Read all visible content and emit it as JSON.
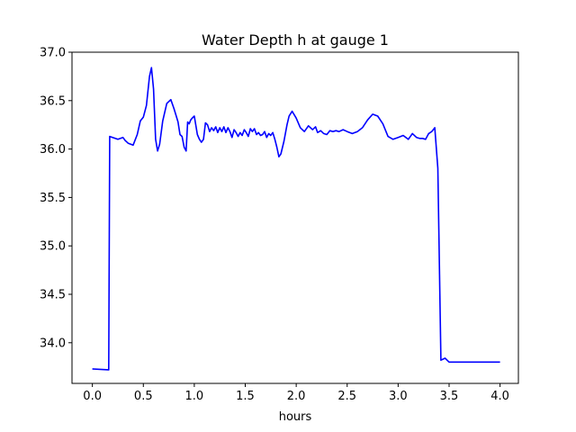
{
  "chart_data": {
    "type": "line",
    "title": "Water Depth h at gauge 1",
    "xlabel": "hours",
    "ylabel": "",
    "xlim": [
      -0.2,
      4.18
    ],
    "ylim": [
      33.58,
      37.0
    ],
    "grid": false,
    "legend": "none",
    "xticks": [
      0.0,
      0.5,
      1.0,
      1.5,
      2.0,
      2.5,
      3.0,
      3.5,
      4.0
    ],
    "xtick_labels": [
      "0.0",
      "0.5",
      "1.0",
      "1.5",
      "2.0",
      "2.5",
      "3.0",
      "3.5",
      "4.0"
    ],
    "yticks": [
      34.0,
      34.5,
      35.0,
      35.5,
      36.0,
      36.5,
      37.0
    ],
    "ytick_labels": [
      "34.0",
      "34.5",
      "35.0",
      "35.5",
      "36.0",
      "36.5",
      "37.0"
    ],
    "colors": {
      "line": "#0000ff",
      "axes": "#000000",
      "background": "#ffffff"
    },
    "series": [
      {
        "x": [
          0.0,
          0.16,
          0.17,
          0.25,
          0.3,
          0.32,
          0.35,
          0.4,
          0.44,
          0.47,
          0.5,
          0.53,
          0.56,
          0.58,
          0.6,
          0.62,
          0.64,
          0.66,
          0.69,
          0.73,
          0.77,
          0.8,
          0.82,
          0.84,
          0.86,
          0.88,
          0.9,
          0.92,
          0.935,
          0.95,
          0.965,
          0.98,
          1.0,
          1.03,
          1.05,
          1.07,
          1.09,
          1.11,
          1.13,
          1.15,
          1.17,
          1.19,
          1.21,
          1.23,
          1.25,
          1.27,
          1.29,
          1.31,
          1.33,
          1.35,
          1.37,
          1.39,
          1.41,
          1.43,
          1.45,
          1.47,
          1.49,
          1.51,
          1.53,
          1.55,
          1.57,
          1.59,
          1.61,
          1.63,
          1.65,
          1.67,
          1.69,
          1.71,
          1.73,
          1.75,
          1.77,
          1.79,
          1.81,
          1.83,
          1.85,
          1.88,
          1.91,
          1.93,
          1.96,
          2.0,
          2.04,
          2.08,
          2.12,
          2.16,
          2.19,
          2.21,
          2.24,
          2.27,
          2.3,
          2.33,
          2.36,
          2.39,
          2.42,
          2.46,
          2.5,
          2.55,
          2.6,
          2.65,
          2.7,
          2.75,
          2.8,
          2.85,
          2.9,
          2.95,
          3.0,
          3.05,
          3.1,
          3.14,
          3.18,
          3.21,
          3.24,
          3.27,
          3.3,
          3.33,
          3.36,
          3.39,
          3.42,
          3.46,
          3.5,
          3.53,
          3.56,
          3.59,
          3.62,
          3.65,
          3.7,
          3.75,
          3.8,
          3.85,
          3.9,
          3.94,
          3.945,
          3.95,
          4.0
        ],
        "values": [
          33.73,
          33.72,
          36.13,
          36.1,
          36.12,
          36.09,
          36.06,
          36.04,
          36.15,
          36.29,
          36.33,
          36.45,
          36.75,
          36.84,
          36.62,
          36.1,
          35.98,
          36.05,
          36.29,
          36.47,
          36.51,
          36.42,
          36.35,
          36.28,
          36.15,
          36.13,
          36.02,
          35.98,
          36.28,
          36.26,
          36.3,
          36.32,
          36.34,
          36.15,
          36.1,
          36.07,
          36.1,
          36.27,
          36.25,
          36.18,
          36.22,
          36.19,
          36.23,
          36.17,
          36.22,
          36.18,
          36.23,
          36.17,
          36.22,
          36.18,
          36.12,
          36.2,
          36.17,
          36.13,
          36.17,
          36.14,
          36.2,
          36.17,
          36.13,
          36.21,
          36.18,
          36.21,
          36.15,
          36.17,
          36.14,
          36.15,
          36.18,
          36.12,
          36.16,
          36.14,
          36.17,
          36.1,
          36.02,
          35.92,
          35.95,
          36.08,
          36.25,
          36.34,
          36.39,
          36.32,
          36.22,
          36.18,
          36.24,
          36.2,
          36.23,
          36.17,
          36.19,
          36.16,
          36.15,
          36.19,
          36.18,
          36.19,
          36.18,
          36.2,
          36.18,
          36.16,
          36.18,
          36.22,
          36.3,
          36.36,
          36.34,
          36.26,
          36.13,
          36.1,
          36.12,
          36.14,
          36.1,
          36.16,
          36.12,
          36.11,
          36.11,
          36.1,
          36.16,
          36.18,
          36.22,
          35.8,
          33.82,
          33.84,
          33.8,
          33.8,
          33.8,
          33.8,
          33.8,
          33.8,
          33.8,
          33.8,
          33.8,
          33.8,
          33.8,
          33.8,
          33.8,
          33.8,
          33.8
        ]
      }
    ]
  }
}
